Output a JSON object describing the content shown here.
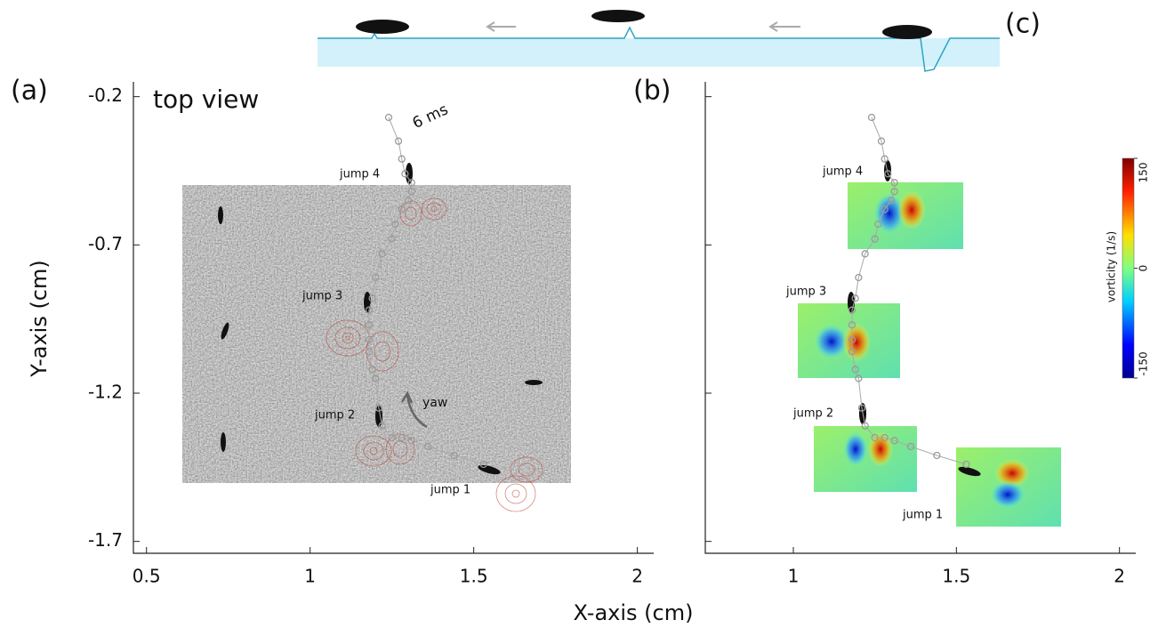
{
  "chart_data": [
    {
      "type": "scatter",
      "panel": "(a)",
      "ylabel": "Y-axis (cm)",
      "x": [
        1.24,
        1.27,
        1.28,
        1.29,
        1.31,
        1.31,
        1.3,
        1.28,
        1.26,
        1.25,
        1.22,
        1.2,
        1.19,
        1.18,
        1.18,
        1.18,
        1.18,
        1.19,
        1.2,
        1.21,
        1.22,
        1.25,
        1.28,
        1.31,
        1.36,
        1.44,
        1.53
      ],
      "y": [
        -0.27,
        -0.35,
        -0.41,
        -0.46,
        -0.49,
        -0.52,
        -0.55,
        -0.58,
        -0.63,
        -0.68,
        -0.73,
        -0.81,
        -0.88,
        -0.92,
        -0.97,
        -1.02,
        -1.06,
        -1.12,
        -1.15,
        -1.25,
        -1.31,
        -1.35,
        -1.35,
        -1.36,
        -1.38,
        -1.41,
        -1.44
      ],
      "color": "#9a9a9a",
      "xlim": [
        0.46,
        2.05
      ],
      "ylim": [
        -1.74,
        -0.15
      ],
      "xticks": [
        0.5,
        1,
        1.5,
        2
      ],
      "yticks": [
        -0.2,
        -0.7,
        -1.2,
        -1.7
      ],
      "ytick_labels": true,
      "annotations": [
        "top view",
        "6 ms",
        "yaw",
        "jump 4",
        "jump 3",
        "jump 2",
        "jump 1"
      ]
    },
    {
      "type": "scatter",
      "panel": "(b)",
      "x": [
        1.24,
        1.27,
        1.28,
        1.29,
        1.31,
        1.31,
        1.3,
        1.28,
        1.26,
        1.25,
        1.22,
        1.2,
        1.19,
        1.18,
        1.18,
        1.18,
        1.18,
        1.19,
        1.2,
        1.21,
        1.22,
        1.25,
        1.28,
        1.31,
        1.36,
        1.44,
        1.53
      ],
      "y": [
        -0.27,
        -0.35,
        -0.41,
        -0.46,
        -0.49,
        -0.52,
        -0.55,
        -0.58,
        -0.63,
        -0.68,
        -0.73,
        -0.81,
        -0.88,
        -0.92,
        -0.97,
        -1.02,
        -1.06,
        -1.12,
        -1.15,
        -1.25,
        -1.31,
        -1.35,
        -1.35,
        -1.36,
        -1.38,
        -1.41,
        -1.44
      ],
      "color": "#9a9a9a",
      "xlim": [
        0.73,
        2.05
      ],
      "ylim": [
        -1.74,
        -0.15
      ],
      "xticks": [
        1,
        1.5,
        2
      ],
      "yticks": [
        -0.2,
        -0.7,
        -1.2,
        -1.7
      ],
      "ytick_labels": false,
      "annotations": [
        "jump 4",
        "jump 3",
        "jump 2",
        "jump 1"
      ],
      "colorbar": {
        "label": "vorticity (1/s)",
        "lim": [
          -150,
          150
        ],
        "ticks": [
          -150,
          0,
          150
        ]
      }
    }
  ],
  "xlabel": "X-axis (cm)",
  "panel_c": {
    "label": "(c)"
  }
}
